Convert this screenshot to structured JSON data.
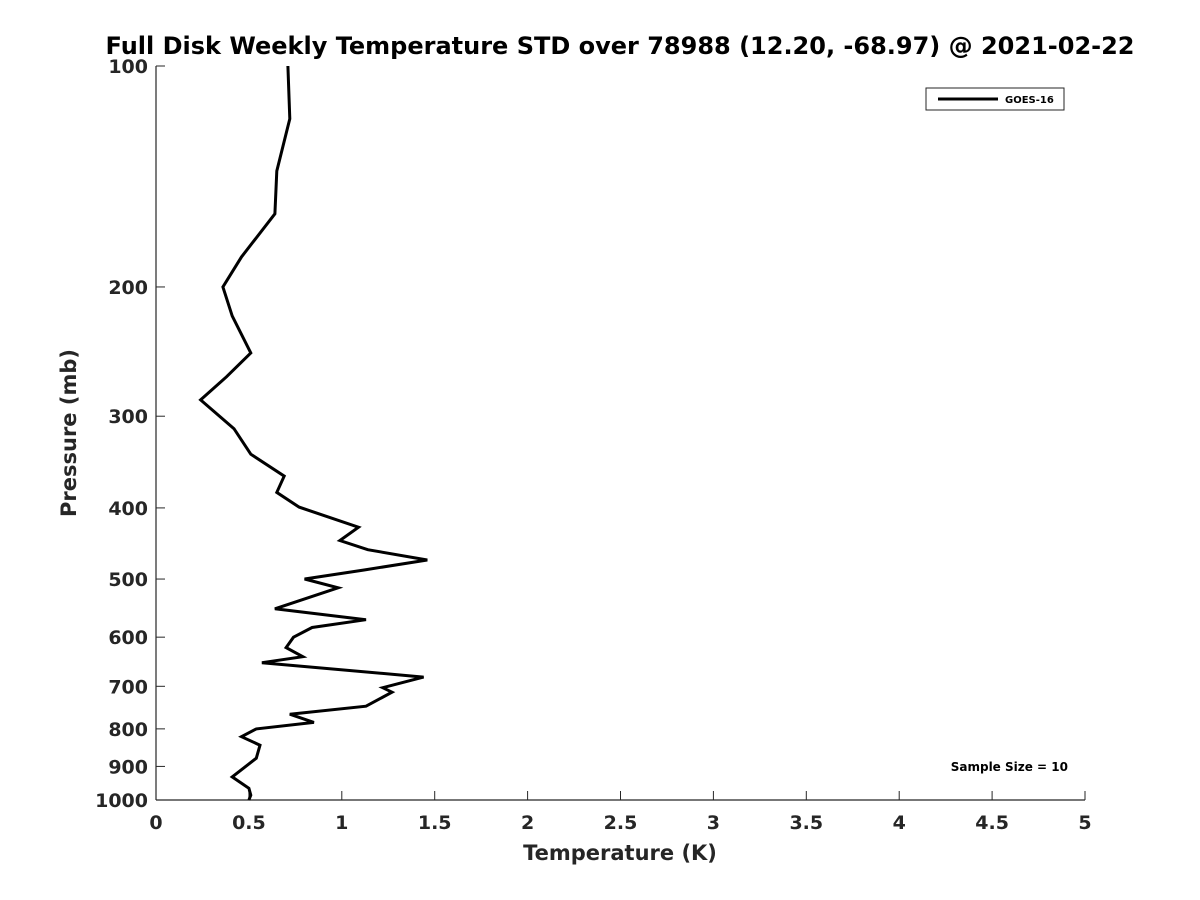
{
  "chart_data": {
    "type": "line",
    "title": "Full Disk Weekly Temperature STD over 78988 (12.20, -68.97) @ 2021-02-22",
    "xlabel": "Temperature (K)",
    "ylabel": "Pressure (mb)",
    "xlim": [
      0,
      5
    ],
    "ylim": [
      1000,
      100
    ],
    "y_scale": "log",
    "y_reversed": true,
    "grid": false,
    "legend_placement": "top-right",
    "x_ticks": [
      "0",
      "0.5",
      "1",
      "1.5",
      "2",
      "2.5",
      "3",
      "3.5",
      "4",
      "4.5",
      "5"
    ],
    "y_ticks": [
      "100",
      "200",
      "300",
      "400",
      "500",
      "600",
      "700",
      "800",
      "900",
      "1000"
    ],
    "series": [
      {
        "name": "GOES-16",
        "color": "#000000",
        "x": [
          0.71,
          0.72,
          0.65,
          0.64,
          0.46,
          0.36,
          0.41,
          0.51,
          0.38,
          0.24,
          0.42,
          0.51,
          0.69,
          0.65,
          0.77,
          1.09,
          0.99,
          1.14,
          1.46,
          1.12,
          0.8,
          0.98,
          0.64,
          1.13,
          0.84,
          0.74,
          0.7,
          0.79,
          0.57,
          1.44,
          1.22,
          1.27,
          1.13,
          0.72,
          0.85,
          0.54,
          0.46,
          0.56,
          0.54,
          0.41,
          0.5,
          0.51,
          0.5
        ],
        "y": [
          100,
          118,
          139,
          159,
          182,
          200,
          219,
          246,
          265,
          285,
          312,
          338,
          362,
          381,
          399,
          425,
          443,
          456,
          471,
          486,
          500,
          514,
          549,
          568,
          582,
          600,
          620,
          638,
          650,
          680,
          703,
          713,
          745,
          764,
          784,
          800,
          820,
          842,
          877,
          930,
          964,
          985,
          1000
        ]
      }
    ],
    "annotations": [
      "Sample Size = 10"
    ]
  }
}
